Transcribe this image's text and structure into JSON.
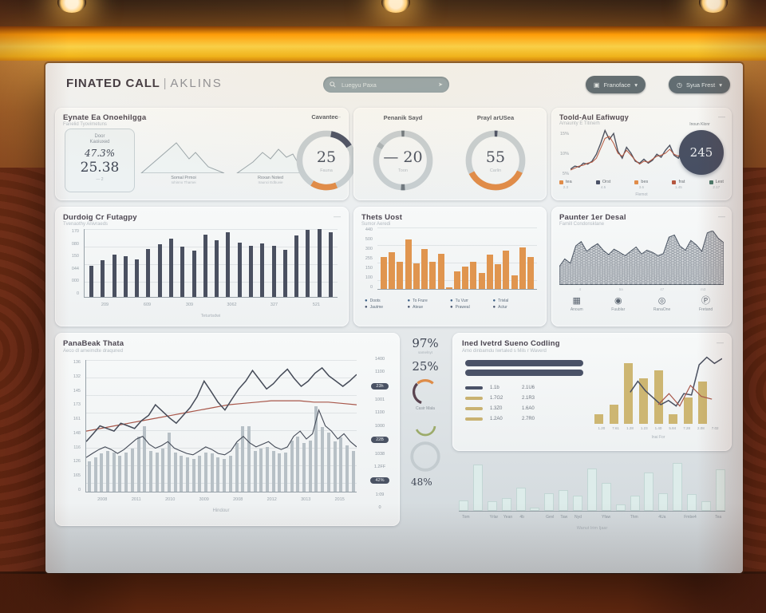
{
  "header": {
    "brand": "FINATED CALL",
    "divider": "|",
    "product": "AKLINS",
    "search_placeholder": "Luegyu Paxa",
    "buttons": [
      {
        "label": "Franoface",
        "caret": "▾",
        "glyph": "▣"
      },
      {
        "label": "Syua Frest",
        "caret": "▾",
        "glyph": "◷"
      }
    ]
  },
  "row1": {
    "summary": {
      "title": "Eynate Ea Onoehilgga",
      "subtitle": "Fanelid Tyovimetuns",
      "menu": "—",
      "stat": {
        "label_line1": "Door",
        "label_line2": "Kaoiuxed",
        "value_pct": "47.3%",
        "value_main": "25.38",
        "footnote": "— 2"
      },
      "mountains": [
        {
          "label": "Somal Prmoi",
          "sub": "Iohinno Thamei"
        },
        {
          "label": "Roxan Noted",
          "sub": "Iraunci Edbuvie"
        }
      ],
      "gauge": {
        "title": "Cavantec",
        "value": "25",
        "caption": "Fauna",
        "arcs": [
          {
            "from": 10,
            "to": 58,
            "color": "#4a5267"
          },
          {
            "from": 158,
            "to": 212,
            "color": "#e08c49"
          }
        ]
      }
    },
    "gauges": {
      "items": [
        {
          "title": "Penanik Sayd",
          "value": "20",
          "prefix": "—",
          "caption": "Toon",
          "arcs": [
            {
              "from": 176,
              "to": 184,
              "color": "#6e7880"
            },
            {
              "from": -3,
              "to": 3,
              "color": "#6e7880"
            },
            {
              "from": -62,
              "to": -52,
              "color": "#aab3b8"
            }
          ]
        },
        {
          "title": "Prayl arUSea",
          "value": "55",
          "prefix": "",
          "caption": "Carlin",
          "arcs": [
            {
              "from": 115,
              "to": 243,
              "color": "#e08c49"
            },
            {
              "from": -2,
              "to": 4,
              "color": "#4a5267"
            }
          ]
        }
      ]
    },
    "trend": {
      "title": "Toold-Aul Eafiwugy",
      "subtitle": "Amaunty E Titinerh",
      "menu": "—",
      "badge_value": "245",
      "badge_note": "Inoun Klonr",
      "ylabels": [
        "15%",
        "10%",
        "5%"
      ],
      "caption": "Flemot",
      "legend": [
        {
          "label": "tea",
          "value": "2.3",
          "color": "#e08c49"
        },
        {
          "label": "Orst",
          "value": "4.5",
          "color": "#4a5267"
        },
        {
          "label": "bes",
          "value": "3.6",
          "color": "#e08c49"
        },
        {
          "label": "frat",
          "value": "1.45",
          "color": "#b4563f"
        },
        {
          "label": "Lest",
          "value": "2.17",
          "color": "#4b7a6c"
        }
      ],
      "chart_data": {
        "type": "line",
        "series": [
          {
            "name": "dark",
            "color": "#4a5060",
            "values": [
              18,
              24,
              22,
              30,
              28,
              34,
              48,
              70,
              96,
              78,
              90,
              54,
              40,
              62,
              50,
              34,
              30,
              38,
              30,
              36,
              48,
              42,
              56,
              66,
              46,
              40,
              58,
              74
            ]
          },
          {
            "name": "red",
            "color": "#b4563f",
            "values": [
              16,
              20,
              24,
              26,
              30,
              32,
              40,
              60,
              80,
              84,
              70,
              50,
              44,
              56,
              46,
              36,
              28,
              34,
              32,
              38,
              44,
              46,
              50,
              58,
              48,
              44,
              54,
              70
            ]
          }
        ]
      }
    }
  },
  "row2": {
    "dark_bars": {
      "title": "Durdoig Cr Futagpy",
      "subtitle": "Tvenaothy Anivraeds",
      "menu": "—",
      "ylabels": [
        "170",
        "080",
        "150",
        "044",
        "000",
        "0"
      ],
      "xlabels": [
        "209",
        "609",
        "309",
        "3062",
        "327",
        "521"
      ],
      "caption": "Teturtsdwi",
      "chart_data": {
        "type": "bar",
        "color": "#4a5060",
        "values": [
          46,
          54,
          62,
          60,
          55,
          71,
          78,
          86,
          74,
          68,
          92,
          83,
          95,
          80,
          75,
          79,
          75,
          69,
          91,
          99,
          100,
          95
        ]
      }
    },
    "orange_bars": {
      "title": "Thets Uost",
      "subtitle": "Sumor Aeredi",
      "ylabels": [
        "440",
        "500",
        "300",
        "255",
        "150",
        "100",
        "0"
      ],
      "legend": [
        {
          "label": "Doots",
          "label2": "Jautme"
        },
        {
          "label": "To Frure",
          "label2": "Ateue"
        },
        {
          "label": "Tu Vurr",
          "label2": "Praweal"
        },
        {
          "label": "Trivlal",
          "label2": "Actur"
        }
      ],
      "icon_colors": [
        "#3a5f86",
        "#44506a"
      ],
      "chart_data": {
        "type": "bar",
        "color": "#e0954f",
        "values": [
          52,
          60,
          44,
          80,
          42,
          65,
          44,
          57,
          3,
          28,
          36,
          44,
          26,
          56,
          40,
          62,
          22,
          67,
          52
        ]
      }
    },
    "skyline": {
      "title": "Paunter 1er Desal",
      "subtitle": "Famill Condonsklane",
      "menu": "—",
      "xlabels": [
        "4",
        "5a",
        "47",
        "m3"
      ],
      "icons": [
        {
          "glyph": "▦",
          "label": "Anoum"
        },
        {
          "glyph": "◉",
          "label": "Fuublar"
        },
        {
          "glyph": "◎",
          "label": "RanaOne"
        },
        {
          "glyph": "Ⓟ",
          "label": "Fretand"
        }
      ],
      "chart_data": {
        "type": "area",
        "color": "#4e5866",
        "values": [
          34,
          48,
          40,
          72,
          80,
          62,
          70,
          76,
          64,
          56,
          66,
          60,
          54,
          62,
          70,
          57,
          64,
          60,
          54,
          58,
          88,
          92,
          72,
          64,
          82,
          74,
          62,
          96,
          100,
          86,
          78
        ]
      }
    }
  },
  "row3": {
    "combo": {
      "title": "PanaBeak Thata",
      "subtitle": "Aeco dl ameimdte draquned",
      "ylabels": [
        "136",
        "132",
        "145",
        "173",
        "161",
        "148",
        "116",
        "126",
        "165",
        "0"
      ],
      "xlabels": [
        "2008",
        "2011",
        "2010",
        "3009",
        "2008",
        "2012",
        "3013",
        "2015"
      ],
      "caption": "Hindour",
      "ylabels_right": [
        {
          "t": "1400",
          "pill": false
        },
        {
          "t": "1100",
          "pill": false
        },
        {
          "t": "23h",
          "pill": true
        },
        {
          "t": "1001",
          "pill": false
        },
        {
          "t": "1100",
          "pill": false
        },
        {
          "t": "1000",
          "pill": false
        },
        {
          "t": "22B",
          "pill": true
        },
        {
          "t": "1038",
          "pill": false
        },
        {
          "t": "1.2FF",
          "pill": false
        },
        {
          "t": "42%",
          "pill": true
        },
        {
          "t": "1:09",
          "pill": false
        },
        {
          "t": "0",
          "pill": false
        }
      ],
      "chart_data": {
        "type": "combo",
        "bars": {
          "color": "#b7c0c6",
          "values": [
            23,
            26,
            29,
            31,
            30,
            27,
            30,
            33,
            42,
            50,
            31,
            30,
            33,
            45,
            30,
            27,
            26,
            25,
            27,
            30,
            29,
            26,
            25,
            27,
            37,
            50,
            50,
            31,
            33,
            34,
            31,
            29,
            30,
            39,
            42,
            37,
            39,
            65,
            49,
            45,
            38,
            41,
            35,
            31
          ]
        },
        "line": {
          "color": "#454b58",
          "values": [
            38,
            44,
            50,
            48,
            46,
            52,
            50,
            48,
            54,
            58,
            66,
            61,
            56,
            52,
            58,
            64,
            72,
            84,
            76,
            68,
            62,
            70,
            78,
            84,
            92,
            85,
            78,
            82,
            88,
            93,
            86,
            80,
            84,
            90,
            94,
            88,
            84,
            80,
            84,
            89
          ]
        },
        "line2": {
          "color": "#454b58",
          "values": [
            26,
            29,
            32,
            34,
            32,
            29,
            32,
            36,
            40,
            42,
            36,
            33,
            35,
            38,
            33,
            31,
            29,
            28,
            31,
            34,
            32,
            29,
            28,
            31,
            38,
            42,
            37,
            34,
            36,
            38,
            34,
            32,
            34,
            42,
            46,
            40,
            44,
            62,
            50,
            46,
            40,
            44,
            38,
            34
          ]
        },
        "trend": {
          "color": "#a8574a",
          "values": [
            46,
            48,
            50,
            52,
            54,
            56,
            58,
            60,
            62,
            64,
            66,
            67,
            68,
            69,
            69,
            69,
            68,
            68,
            67,
            66
          ]
        }
      }
    },
    "stats": {
      "v1": "97%",
      "v1_caption": "samelnyt",
      "v2": "25%",
      "arc_label": "Casir Mala",
      "v3": "48%",
      "arc1": [
        {
          "from": 200,
          "to": 315,
          "color": "#5a4450"
        },
        {
          "from": 318,
          "to": 42,
          "color": "#de8c49"
        }
      ],
      "arc2": [
        {
          "from": 95,
          "to": 245,
          "color": "#9cab6a"
        }
      ],
      "donut_color": "#c3cbcf"
    },
    "tan": {
      "title": "Ined Ivetrd Sueno Codling",
      "subtitle": "Amo dinbamdu Iwrtaled s Mils r Waverd",
      "menu": "—",
      "caption": "Inai For",
      "xlabels": [
        "1.20",
        "7.61",
        "1.28",
        "1.23",
        "1.40",
        "5.84",
        "7.28",
        "2.08",
        "7.02"
      ],
      "legend_rows": [
        {
          "swatch": "#4a5267",
          "c1": "1.1b",
          "c2": "2.1U6"
        },
        {
          "swatch": "#c9b271",
          "c1": "1.7G2",
          "c2": "2.1R3"
        },
        {
          "swatch": "#c9b271",
          "c1": "1.3Z0",
          "c2": "1.6A0"
        },
        {
          "swatch": "#c9b271",
          "c1": "1.2A0",
          "c2": "2.7R0"
        }
      ],
      "chart_data": {
        "type": "combo",
        "bars": {
          "color": "#cdb672",
          "values": [
            14,
            28,
            88,
            66,
            78,
            14,
            38,
            62,
            0
          ]
        },
        "line": {
          "color": "#4a5060",
          "start": 0.28,
          "values": [
            46,
            62,
            48,
            38,
            28,
            34,
            26,
            44,
            42,
            86,
            97,
            88,
            95
          ]
        },
        "trend": {
          "color": "#a8574a",
          "start": 0.5,
          "end": 0.92,
          "values": [
            28,
            44,
            26,
            56,
            40,
            36
          ]
        }
      }
    },
    "light": {
      "caption": "Wanut Irim Ijaar",
      "xlabels": [
        "Tom",
        "",
        "Yrlar",
        "Yean",
        "4b",
        "",
        "Gevl",
        "Taw",
        "Nyd",
        "",
        "Yfaw",
        "",
        "Thm",
        "",
        "4Ua",
        "",
        "Fmbe4",
        "",
        "Tea"
      ],
      "chart_data": {
        "type": "bar",
        "color": "#ddecea",
        "border": "#c2d6d4",
        "values": [
          20,
          90,
          18,
          24,
          44,
          6,
          34,
          40,
          30,
          82,
          54,
          12,
          30,
          74,
          34,
          92,
          32,
          18,
          80
        ]
      }
    }
  }
}
